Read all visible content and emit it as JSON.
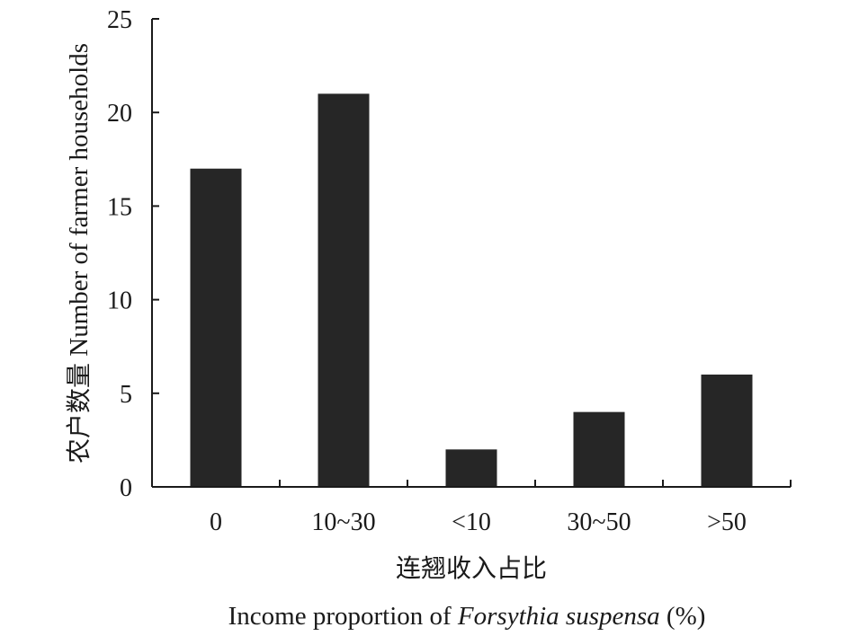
{
  "colors": {
    "bar": "#262626",
    "axis": "#1a1a1a"
  },
  "chart_data": {
    "type": "bar",
    "categories": [
      "0",
      "10~30",
      "<10",
      "30~50",
      ">50"
    ],
    "values": [
      17,
      21,
      2,
      4,
      6
    ],
    "ylim": [
      0,
      25
    ],
    "yticks": [
      0,
      5,
      10,
      15,
      20,
      25
    ],
    "ylabel": {
      "cn": "农户数量",
      "en": "Number of farmer households"
    },
    "xlabel": {
      "cn": "连翘收入占比",
      "en_prefix": "Income proportion of ",
      "en_italic": "Forsythia suspensa",
      "en_suffix": " (%)"
    },
    "grid": false,
    "legend": "none"
  }
}
